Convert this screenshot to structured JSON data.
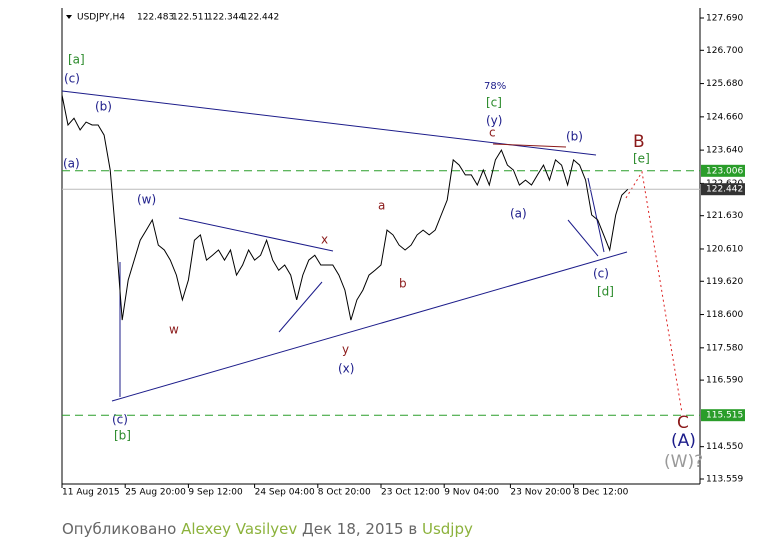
{
  "header": {
    "symbol": "USDJPY,H4",
    "ohlc": [
      122.483,
      122.511,
      122.344,
      122.442
    ]
  },
  "chart_data": {
    "type": "line",
    "series": [
      {
        "name": "USDJPY",
        "color": "#000000",
        "values": [
          125.33,
          124.41,
          124.62,
          124.26,
          124.5,
          124.41,
          124.41,
          124.1,
          123.03,
          120.88,
          118.43,
          119.66,
          120.27,
          120.88,
          121.19,
          121.5,
          120.73,
          120.58,
          120.27,
          119.81,
          119.05,
          119.66,
          120.88,
          121.04,
          120.27,
          120.42,
          120.58,
          120.27,
          120.58,
          119.81,
          120.12,
          120.58,
          120.27,
          120.42,
          120.88,
          120.27,
          119.96,
          120.12,
          119.81,
          119.05,
          119.81,
          120.27,
          120.42,
          120.12,
          120.12,
          120.12,
          119.81,
          119.35,
          118.43,
          119.05,
          119.35,
          119.81,
          119.96,
          120.12,
          121.19,
          121.04,
          120.73,
          120.58,
          120.73,
          121.04,
          121.19,
          121.04,
          121.19,
          121.65,
          122.11,
          123.34,
          123.18,
          122.88,
          122.88,
          122.57,
          123.03,
          122.57,
          123.34,
          123.64,
          123.18,
          123.03,
          122.57,
          122.72,
          122.57,
          122.88,
          123.18,
          122.72,
          123.34,
          123.18,
          122.57,
          123.34,
          123.18,
          122.72,
          121.65,
          121.5,
          121.04,
          120.58,
          121.65,
          122.26,
          122.44
        ]
      }
    ],
    "ylim": [
      113.559,
      127.69
    ],
    "yticks": [
      {
        "value": 127.69,
        "label": "127.690"
      },
      {
        "value": 126.7,
        "label": "126.700"
      },
      {
        "value": 125.68,
        "label": "125.680"
      },
      {
        "value": 124.66,
        "label": "124.660"
      },
      {
        "value": 123.64,
        "label": "123.640"
      },
      {
        "value": 122.62,
        "label": "122.620"
      },
      {
        "value": 121.63,
        "label": "121.630"
      },
      {
        "value": 120.61,
        "label": "120.610"
      },
      {
        "value": 119.62,
        "label": "119.620"
      },
      {
        "value": 118.6,
        "label": "118.600"
      },
      {
        "value": 117.58,
        "label": "117.580"
      },
      {
        "value": 116.59,
        "label": "116.590"
      },
      {
        "value": 114.55,
        "label": "114.550"
      },
      113.559
    ],
    "xlim": [
      0,
      106
    ],
    "xticks": [
      {
        "value": 0,
        "label": "11 Aug 2015"
      },
      {
        "value": 10.5,
        "label": "25 Aug 20:00"
      },
      {
        "value": 21,
        "label": "9 Sep 12:00"
      },
      {
        "value": 32,
        "label": "24 Sep 04:00"
      },
      {
        "value": 42.5,
        "label": "8 Oct 20:00"
      },
      {
        "value": 53,
        "label": "23 Oct 12:00"
      },
      {
        "value": 63.5,
        "label": "9 Nov 04:00"
      },
      {
        "value": 74.5,
        "label": "23 Nov 20:00"
      },
      {
        "value": 85,
        "label": "8 Dec 12:00"
      }
    ],
    "levels": [
      123.006,
      115.515
    ],
    "level_color": "#2a9d2a",
    "last_price": 122.442,
    "annotations": [
      "[a]",
      "(c)",
      "(b)",
      "(a)",
      "(w)",
      "w",
      "(c)",
      "[b]",
      "x",
      "y",
      "(x)",
      "a",
      "b",
      "78%",
      "[c]",
      "(y)",
      "c",
      "(a)",
      "(b)",
      "B",
      "[e]",
      "(c)",
      "[d]",
      "C",
      "(A)",
      "(W)?"
    ]
  },
  "footer": {
    "published": "Опубликовано",
    "author": "Alexey Vasilyev",
    "date": "Дек 18, 2015 в",
    "symbol": "Usdjpy"
  }
}
